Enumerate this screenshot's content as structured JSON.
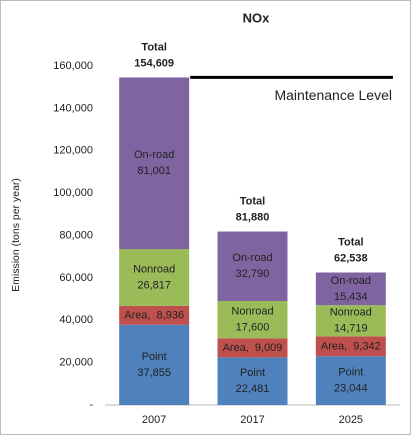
{
  "chart_data": {
    "type": "stacked_bar",
    "title": "NOx",
    "y_label": "Emission (tons per year)",
    "categories": [
      "2007",
      "2017",
      "2025"
    ],
    "series": [
      {
        "name": "Point",
        "color": "#4f81bd",
        "values": [
          37855,
          22481,
          23044
        ],
        "value_labels": [
          "37,855",
          "22,481",
          "23,044"
        ]
      },
      {
        "name": "Area",
        "color": "#c0504d",
        "label_separator": ",",
        "values": [
          8936,
          9009,
          9342
        ],
        "value_labels": [
          "8,936",
          "9,009",
          "9,342"
        ]
      },
      {
        "name": "Nonroad",
        "color": "#9bbb59",
        "values": [
          26817,
          17600,
          14719
        ],
        "value_labels": [
          "26,817",
          "17,600",
          "14,719"
        ]
      },
      {
        "name": "On-road",
        "color": "#8064a2",
        "values": [
          81001,
          32790,
          15434
        ],
        "value_labels": [
          "81,001",
          "32,790",
          "15,434"
        ]
      }
    ],
    "totals": {
      "label": "Total",
      "values": [
        154609,
        81880,
        62538
      ],
      "value_labels": [
        "154,609",
        "81,880",
        "62,538"
      ]
    },
    "reference_line": {
      "label": "Maintenance Level",
      "value": 154609
    },
    "ylim": [
      0,
      160000
    ],
    "yticks": [
      {
        "value": 0,
        "label": "-"
      },
      {
        "value": 20000,
        "label": "20,000"
      },
      {
        "value": 40000,
        "label": "40,000"
      },
      {
        "value": 60000,
        "label": "60,000"
      },
      {
        "value": 80000,
        "label": "80,000"
      },
      {
        "value": 100000,
        "label": "100,000"
      },
      {
        "value": 120000,
        "label": "120,000"
      },
      {
        "value": 140000,
        "label": "140,000"
      },
      {
        "value": 160000,
        "label": "160,000"
      }
    ],
    "grid": false
  }
}
